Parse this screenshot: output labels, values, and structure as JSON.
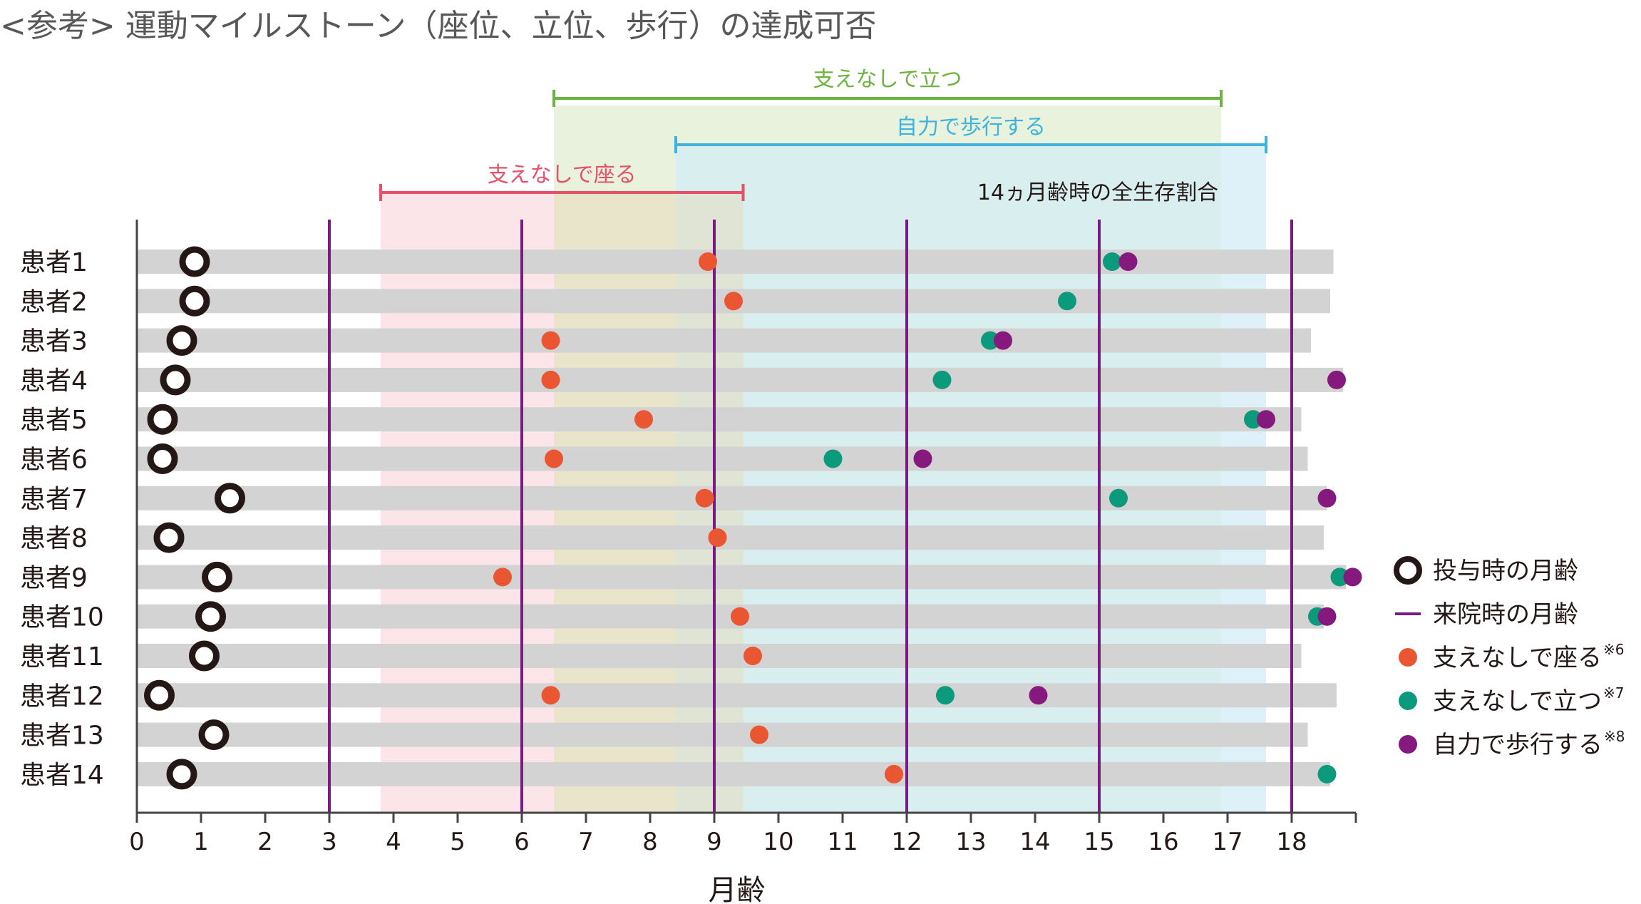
{
  "title": "<参考> 運動マイルストーン（座位、立位、歩行）の達成可否",
  "chart_data": {
    "type": "scatter",
    "xlabel": "月齢",
    "xlim": [
      0,
      19
    ],
    "xticks": [
      0,
      1,
      2,
      3,
      4,
      5,
      6,
      7,
      8,
      9,
      10,
      11,
      12,
      13,
      14,
      15,
      16,
      17,
      18
    ],
    "patients": [
      "患者1",
      "患者2",
      "患者3",
      "患者4",
      "患者5",
      "患者6",
      "患者7",
      "患者8",
      "患者9",
      "患者10",
      "患者11",
      "患者12",
      "患者13",
      "患者14"
    ],
    "bar_end": [
      18.65,
      18.6,
      18.3,
      18.8,
      18.15,
      18.25,
      18.55,
      18.5,
      18.85,
      18.5,
      18.15,
      18.7,
      18.25,
      18.6
    ],
    "dosing_age": [
      0.9,
      0.9,
      0.7,
      0.6,
      0.4,
      0.4,
      1.45,
      0.5,
      1.25,
      1.15,
      1.05,
      0.35,
      1.2,
      0.7
    ],
    "sit": [
      8.9,
      9.3,
      6.45,
      6.45,
      7.9,
      6.5,
      8.85,
      9.05,
      5.7,
      9.4,
      9.6,
      6.45,
      9.7,
      11.8
    ],
    "stand": [
      15.2,
      14.5,
      13.3,
      12.55,
      17.4,
      10.85,
      15.3,
      null,
      18.75,
      18.4,
      null,
      12.6,
      null,
      18.55
    ],
    "walk": [
      15.45,
      null,
      13.5,
      18.7,
      17.6,
      12.25,
      18.55,
      null,
      18.95,
      18.55,
      null,
      14.05,
      null,
      null
    ],
    "visit_lines": [
      3,
      6,
      9,
      12,
      15,
      18
    ],
    "ranges": [
      {
        "name": "支えなしで座る",
        "start": 3.8,
        "end": 9.45,
        "color": "#e8506a",
        "fill": "#fce5e9"
      },
      {
        "name": "支えなしで立つ",
        "start": 6.5,
        "end": 16.9,
        "color": "#6db33f",
        "fill": "#e6f1d8"
      },
      {
        "name": "自力で歩行する",
        "start": 8.4,
        "end": 17.6,
        "color": "#3fb3de",
        "fill": "#d3ecf6"
      }
    ],
    "annotation": "14ヵ月齢時の全生存割合",
    "legend": [
      {
        "label": "投与時の月齢",
        "sup": "",
        "symbol": "ring",
        "color": "#231815"
      },
      {
        "label": "来院時の月齢",
        "sup": "",
        "symbol": "line",
        "color": "#7a1a83"
      },
      {
        "label": "支えなしで座る",
        "sup": "※6",
        "symbol": "dot",
        "color": "#ea5532"
      },
      {
        "label": "支えなしで立つ",
        "sup": "※7",
        "symbol": "dot",
        "color": "#0c9a7d"
      },
      {
        "label": "自力で歩行する",
        "sup": "※8",
        "symbol": "dot",
        "color": "#85197e"
      }
    ],
    "colors": {
      "bar": "#d3d3d3",
      "axis": "#444444",
      "visit": "#7a1a83",
      "sit": "#ea5532",
      "stand": "#0c9a7d",
      "walk": "#85197e",
      "ring": "#231815"
    }
  }
}
